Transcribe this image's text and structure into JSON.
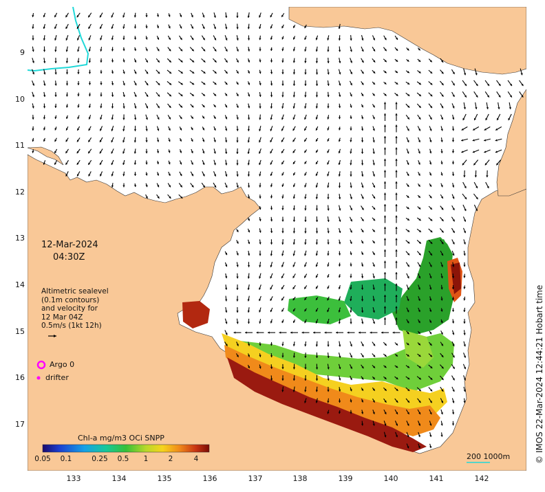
{
  "map": {
    "date": "12-Mar-2024",
    "time": "04:30Z",
    "legend_lines": [
      "Altimetric sealevel",
      "(0.1m contours)",
      "and velocity for",
      "12 Mar 04Z",
      "0.5m/s (1kt 12h)"
    ],
    "argo_label": "Argo 0",
    "drifter_label": "drifter",
    "colorbar_title": "Chl-a mg/m3 OCi SNPP",
    "colorbar_ticks": [
      "0.05",
      "0.1",
      "0.25",
      "0.5",
      "1",
      "2",
      "4"
    ],
    "scale_label": "200  1000m",
    "credit": "© IMOS 22-Mar-2024 12:44:21 Hobart time",
    "lat_ticks": [
      "9",
      "10",
      "11",
      "12",
      "13",
      "14",
      "15",
      "16",
      "17"
    ],
    "lon_ticks": [
      "133",
      "134",
      "135",
      "136",
      "137",
      "138",
      "139",
      "140",
      "141",
      "142"
    ],
    "colors": {
      "land": "#f9c897",
      "argo": "#ff00ff",
      "isobath_200": "#20d8d8",
      "arrow": "#000000"
    }
  }
}
